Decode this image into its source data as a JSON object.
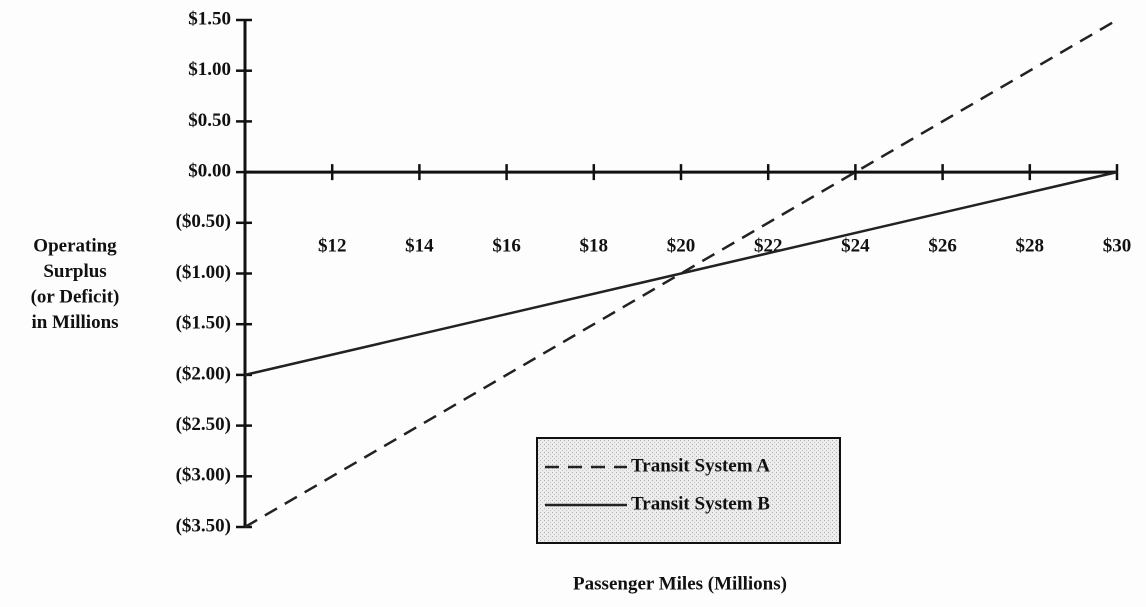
{
  "chart_data": {
    "type": "line",
    "ylabel": [
      "Operating",
      "Surplus",
      "(or Deficit)",
      "in Millions"
    ],
    "xlabel": "Passenger Miles (Millions)",
    "x": [
      10,
      30
    ],
    "series": [
      {
        "name": "Transit System A",
        "color": "#222222",
        "dash": true,
        "values": [
          -3.5,
          1.5
        ]
      },
      {
        "name": "Transit System B",
        "color": "#222222",
        "dash": false,
        "values": [
          -2,
          0
        ]
      }
    ],
    "xlim": [
      10,
      30
    ],
    "xticks": [
      {
        "value": 12,
        "label": "$12"
      },
      {
        "value": 14,
        "label": "$14"
      },
      {
        "value": 16,
        "label": "$16"
      },
      {
        "value": 18,
        "label": "$18"
      },
      {
        "value": 20,
        "label": "$20"
      },
      {
        "value": 22,
        "label": "$22"
      },
      {
        "value": 24,
        "label": "$24"
      },
      {
        "value": 26,
        "label": "$26"
      },
      {
        "value": 28,
        "label": "$28"
      },
      {
        "value": 30,
        "label": "$30"
      }
    ],
    "ylim": [
      -3.5,
      1.5
    ],
    "yticks": [
      {
        "value": 1.5,
        "label": "$1.50"
      },
      {
        "value": 1,
        "label": "$1.00"
      },
      {
        "value": 0.5,
        "label": "$0.50"
      },
      {
        "value": 0,
        "label": "$0.00"
      },
      {
        "value": -0.5,
        "label": "($0.50)"
      },
      {
        "value": -1,
        "label": "($1.00)"
      },
      {
        "value": -1.5,
        "label": "($1.50)"
      },
      {
        "value": -2,
        "label": "($2.00)"
      },
      {
        "value": -2.5,
        "label": "($2.50)"
      },
      {
        "value": -3,
        "label": "($3.00)"
      },
      {
        "value": -3.5,
        "label": "($3.50)"
      }
    ],
    "grid": false
  }
}
